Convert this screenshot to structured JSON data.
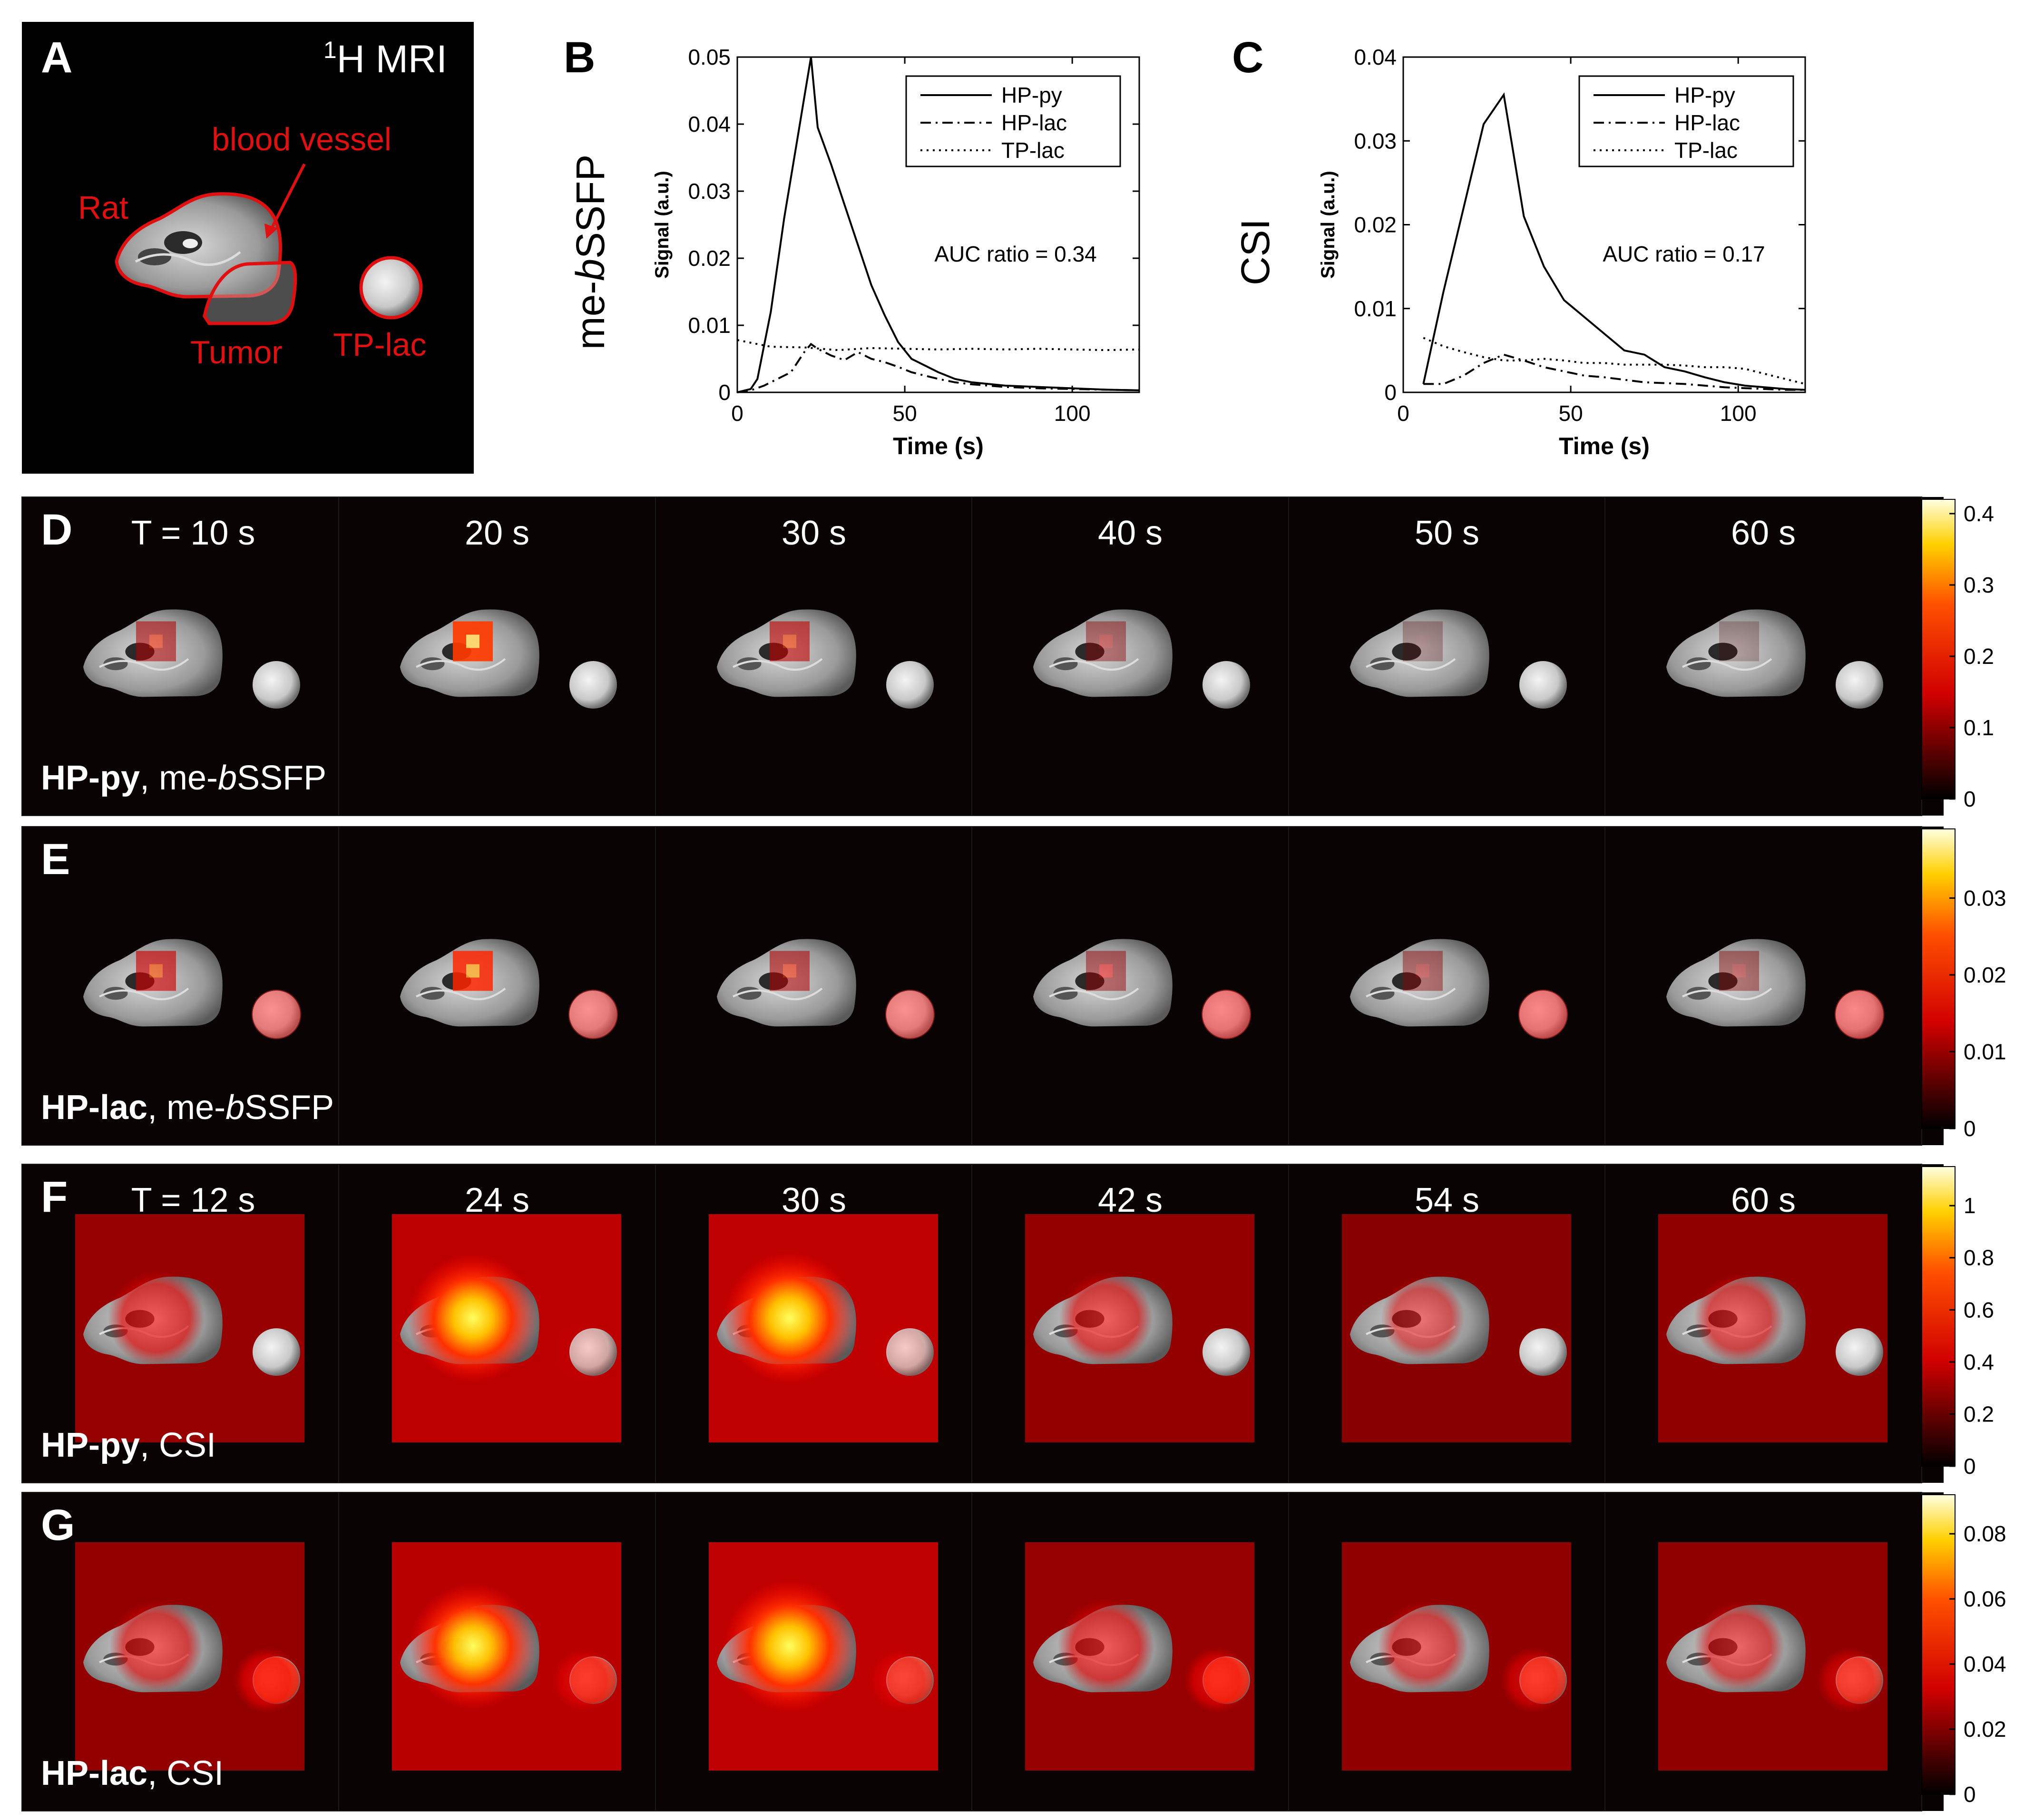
{
  "panel_A": {
    "letter": "A",
    "title": "H MRI",
    "title_sup": "1",
    "labels": {
      "rat": "Rat",
      "vessel": "blood vessel",
      "tumor": "Tumor",
      "tplac": "TP-lac"
    }
  },
  "chart_data": [
    {
      "id": "B",
      "type": "line",
      "letter": "B",
      "side_label_pre": "me-",
      "side_label_italic": "b",
      "side_label_post": "SSFP",
      "xlabel": "Time (s)",
      "ylabel": "Signal (a.u.)",
      "xlim": [
        0,
        120
      ],
      "ylim": [
        0,
        0.05
      ],
      "xticks": [
        0,
        50,
        100
      ],
      "yticks": [
        0,
        0.01,
        0.02,
        0.03,
        0.04,
        0.05
      ],
      "ytick_labels": [
        "0",
        "0.01",
        "0.02",
        "0.03",
        "0.04",
        "0.05"
      ],
      "annotation": "AUC ratio = 0.34",
      "series": [
        {
          "name": "HP-py",
          "style": "solid",
          "x": [
            0,
            4,
            6,
            10,
            14,
            18,
            20,
            22,
            24,
            28,
            32,
            36,
            40,
            44,
            48,
            52,
            56,
            60,
            65,
            70,
            80,
            90,
            100,
            110,
            120
          ],
          "y": [
            0,
            0.0005,
            0.002,
            0.012,
            0.026,
            0.038,
            0.044,
            0.05,
            0.0395,
            0.034,
            0.028,
            0.022,
            0.016,
            0.0115,
            0.0075,
            0.005,
            0.004,
            0.003,
            0.002,
            0.0015,
            0.001,
            0.0008,
            0.0006,
            0.0004,
            0.0003
          ]
        },
        {
          "name": "HP-lac",
          "style": "dashdot",
          "x": [
            0,
            4,
            8,
            12,
            16,
            20,
            22,
            24,
            28,
            32,
            36,
            40,
            44,
            48,
            52,
            56,
            60,
            65,
            70,
            80,
            90,
            100,
            110,
            120
          ],
          "y": [
            0,
            0.0003,
            0.001,
            0.002,
            0.003,
            0.006,
            0.0072,
            0.0065,
            0.0055,
            0.0048,
            0.006,
            0.005,
            0.0045,
            0.0038,
            0.003,
            0.0025,
            0.002,
            0.0015,
            0.0012,
            0.0008,
            0.0006,
            0.0005,
            0.0004,
            0.0003
          ]
        },
        {
          "name": "TP-lac",
          "style": "dotted",
          "x": [
            0,
            10,
            20,
            30,
            40,
            50,
            60,
            70,
            80,
            90,
            100,
            110,
            120
          ],
          "y": [
            0.0078,
            0.0068,
            0.0067,
            0.0063,
            0.0066,
            0.0065,
            0.0064,
            0.0065,
            0.0064,
            0.0065,
            0.0064,
            0.0063,
            0.0064
          ]
        }
      ],
      "legend": "top-right"
    },
    {
      "id": "C",
      "type": "line",
      "letter": "C",
      "side_label": "CSI",
      "xlabel": "Time (s)",
      "ylabel": "Signal (a.u.)",
      "xlim": [
        0,
        120
      ],
      "ylim": [
        0,
        0.04
      ],
      "xticks": [
        0,
        50,
        100
      ],
      "yticks": [
        0,
        0.01,
        0.02,
        0.03,
        0.04
      ],
      "ytick_labels": [
        "0",
        "0.01",
        "0.02",
        "0.03",
        "0.04"
      ],
      "annotation": "AUC ratio = 0.17",
      "series": [
        {
          "name": "HP-py",
          "style": "solid",
          "x": [
            6,
            12,
            18,
            24,
            30,
            36,
            42,
            48,
            54,
            60,
            66,
            72,
            78,
            84,
            90,
            96,
            102,
            108,
            114,
            120
          ],
          "y": [
            0.001,
            0.012,
            0.022,
            0.032,
            0.0355,
            0.021,
            0.015,
            0.011,
            0.009,
            0.007,
            0.005,
            0.0045,
            0.003,
            0.0025,
            0.0018,
            0.0012,
            0.0008,
            0.0006,
            0.0004,
            0.0003
          ]
        },
        {
          "name": "HP-lac",
          "style": "dashdot",
          "x": [
            6,
            12,
            18,
            24,
            30,
            36,
            42,
            48,
            54,
            60,
            66,
            72,
            78,
            84,
            90,
            96,
            102,
            108,
            114,
            120
          ],
          "y": [
            0.001,
            0.001,
            0.002,
            0.0035,
            0.0045,
            0.0038,
            0.003,
            0.0025,
            0.002,
            0.0018,
            0.0015,
            0.0012,
            0.0011,
            0.001,
            0.0008,
            0.0006,
            0.0005,
            0.0004,
            0.0003,
            0.0003
          ]
        },
        {
          "name": "TP-lac",
          "style": "dotted",
          "x": [
            6,
            12,
            18,
            24,
            30,
            36,
            42,
            48,
            54,
            60,
            66,
            72,
            78,
            84,
            90,
            96,
            102,
            108,
            114,
            120
          ],
          "y": [
            0.0065,
            0.0055,
            0.0048,
            0.0042,
            0.0038,
            0.0038,
            0.004,
            0.0038,
            0.0035,
            0.0035,
            0.0033,
            0.0033,
            0.0033,
            0.0032,
            0.003,
            0.003,
            0.0028,
            0.0022,
            0.0016,
            0.001
          ]
        }
      ],
      "legend": "top-right"
    }
  ],
  "image_rows": [
    {
      "letter": "D",
      "bold": "HP-py",
      "method_pre": ", me-",
      "method_italic": "b",
      "method_post": "SSFP",
      "times": [
        "T = 10 s",
        "20 s",
        "30 s",
        "40 s",
        "50 s",
        "60 s"
      ],
      "intensity": [
        0.45,
        0.9,
        0.5,
        0.3,
        0.1,
        0.05
      ],
      "phantom": [
        0.0,
        0.0,
        0.0,
        0.0,
        0.0,
        0.0
      ],
      "csi": false,
      "colorbar": {
        "max": 0.42,
        "ticks": [
          0,
          0.1,
          0.2,
          0.3,
          0.4
        ],
        "labels": [
          "0",
          "0.1",
          "0.2",
          "0.3",
          "0.4"
        ]
      }
    },
    {
      "letter": "E",
      "bold": "HP-lac",
      "method_pre": ", me-",
      "method_italic": "b",
      "method_post": "SSFP",
      "times": [],
      "intensity": [
        0.55,
        0.8,
        0.45,
        0.35,
        0.3,
        0.28
      ],
      "phantom": [
        0.5,
        0.5,
        0.5,
        0.55,
        0.55,
        0.55
      ],
      "csi": false,
      "colorbar": {
        "max": 0.039,
        "ticks": [
          0,
          0.01,
          0.02,
          0.03
        ],
        "labels": [
          "0",
          "0.01",
          "0.02",
          "0.03"
        ]
      }
    },
    {
      "letter": "F",
      "bold": "HP-py",
      "method_pre": ", CSI",
      "method_italic": "",
      "method_post": "",
      "times": [
        "T = 12 s",
        "24 s",
        "30 s",
        "42 s",
        "54 s",
        "60 s"
      ],
      "intensity": [
        0.45,
        0.95,
        1.0,
        0.4,
        0.25,
        0.35
      ],
      "phantom": [
        0.0,
        0.1,
        0.1,
        0.0,
        0.0,
        0.0
      ],
      "csi": true,
      "colorbar": {
        "max": 1.15,
        "ticks": [
          0,
          0.2,
          0.4,
          0.6,
          0.8,
          1
        ],
        "labels": [
          "0",
          "0.2",
          "0.4",
          "0.6",
          "0.8",
          "1"
        ]
      }
    },
    {
      "letter": "G",
      "bold": "HP-lac",
      "method_pre": ", CSI",
      "method_italic": "",
      "method_post": "",
      "times": [],
      "intensity": [
        0.4,
        0.9,
        1.0,
        0.45,
        0.35,
        0.35
      ],
      "phantom": [
        0.7,
        0.6,
        0.55,
        0.7,
        0.6,
        0.55
      ],
      "csi": true,
      "colorbar": {
        "max": 0.092,
        "ticks": [
          0,
          0.02,
          0.04,
          0.06,
          0.08
        ],
        "labels": [
          "0",
          "0.02",
          "0.04",
          "0.06",
          "0.08"
        ]
      }
    }
  ]
}
